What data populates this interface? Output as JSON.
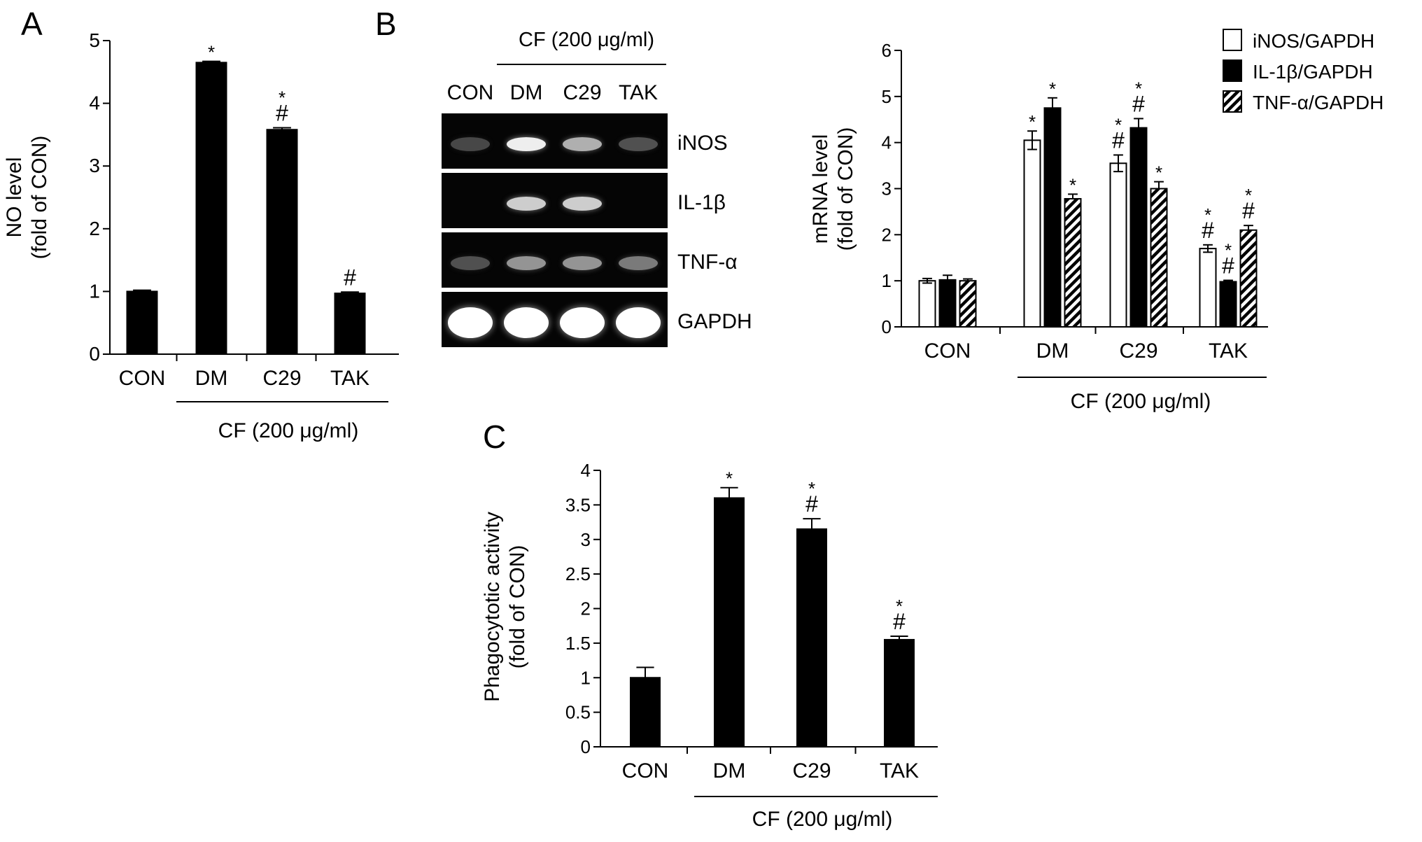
{
  "panels": {
    "A": "A",
    "B": "B",
    "C": "C"
  },
  "treatment_label": "CF (200 μg/ml)",
  "gel": {
    "lanes": [
      "CON",
      "DM",
      "C29",
      "TAK"
    ],
    "genes": [
      "iNOS",
      "IL-1β",
      "TNF-α",
      "GAPDH"
    ],
    "band_intensity": [
      [
        0.3,
        0.95,
        0.75,
        0.35
      ],
      [
        0.0,
        0.85,
        0.85,
        0.0
      ],
      [
        0.35,
        0.65,
        0.65,
        0.55
      ],
      [
        1.0,
        1.0,
        1.0,
        1.0
      ]
    ]
  },
  "chart_data": [
    {
      "type": "bar",
      "panel": "A",
      "categories": [
        "CON",
        "DM",
        "C29",
        "TAK"
      ],
      "values": [
        1.0,
        4.65,
        3.58,
        0.97
      ],
      "errors": [
        0.02,
        0.02,
        0.03,
        0.02
      ],
      "annotations": [
        "",
        "*",
        "*\n#",
        "#"
      ],
      "ylabel_line1": "NO level",
      "ylabel_line2": "(fold of CON)",
      "ylim": [
        0,
        5
      ],
      "yticks": [
        0,
        1,
        2,
        3,
        4,
        5
      ],
      "group_label": "CF (200 μg/ml)",
      "group_categories": [
        "DM",
        "C29",
        "TAK"
      ],
      "color": "#000000"
    },
    {
      "type": "bar",
      "panel": "B",
      "categories": [
        "CON",
        "DM",
        "C29",
        "TAK"
      ],
      "series": [
        {
          "name": "iNOS/GAPDH",
          "fill": "white",
          "values": [
            1.0,
            4.05,
            3.55,
            1.7
          ],
          "errors": [
            0.05,
            0.2,
            0.18,
            0.08
          ],
          "annotations": [
            "",
            "*",
            "*\n#",
            "*\n#"
          ]
        },
        {
          "name": "IL-1β/GAPDH",
          "fill": "black",
          "values": [
            1.02,
            4.75,
            4.32,
            0.98
          ],
          "errors": [
            0.1,
            0.22,
            0.2,
            0.03
          ],
          "annotations": [
            "",
            "*",
            "*\n#",
            "*\n#"
          ]
        },
        {
          "name": "TNF-α/GAPDH",
          "fill": "hatch",
          "values": [
            1.0,
            2.78,
            3.0,
            2.1
          ],
          "errors": [
            0.04,
            0.1,
            0.15,
            0.1
          ],
          "annotations": [
            "",
            "*",
            "*",
            "*\n#"
          ]
        }
      ],
      "ylabel_line1": "mRNA level",
      "ylabel_line2": "(fold of CON)",
      "ylim": [
        0,
        6
      ],
      "yticks": [
        0,
        1,
        2,
        3,
        4,
        5,
        6
      ],
      "legend": "top-right",
      "group_label": "CF (200 μg/ml)",
      "group_categories": [
        "DM",
        "C29",
        "TAK"
      ]
    },
    {
      "type": "bar",
      "panel": "C",
      "categories": [
        "CON",
        "DM",
        "C29",
        "TAK"
      ],
      "values": [
        1.0,
        3.6,
        3.15,
        1.55
      ],
      "errors": [
        0.15,
        0.15,
        0.15,
        0.05
      ],
      "annotations": [
        "",
        "*",
        "*\n#",
        "*\n#"
      ],
      "ylabel_line1": "Phagocytotic activity",
      "ylabel_line2": "(fold of CON)",
      "ylim": [
        0,
        4
      ],
      "yticks": [
        0,
        0.5,
        1,
        1.5,
        2,
        2.5,
        3,
        3.5,
        4
      ],
      "group_label": "CF (200 μg/ml)",
      "group_categories": [
        "DM",
        "C29",
        "TAK"
      ],
      "color": "#000000"
    }
  ]
}
